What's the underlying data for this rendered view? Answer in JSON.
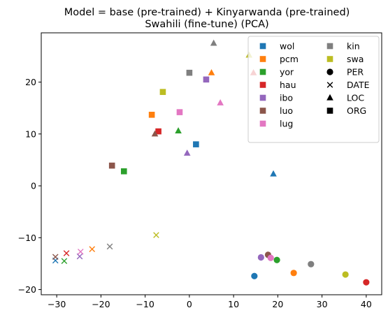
{
  "chart_data": {
    "type": "scatter",
    "title": [
      "Model = base (pre-trained) + Kinyarwanda (pre-trained)",
      "Swahili (fine-tune) (PCA)"
    ],
    "xlabel": "",
    "ylabel": "",
    "xlim": [
      -33.5,
      43.5
    ],
    "ylim": [
      -21,
      29.5
    ],
    "xticks": [
      -30,
      -20,
      -10,
      0,
      10,
      20,
      30,
      40
    ],
    "yticks": [
      -20,
      -10,
      0,
      10,
      20
    ],
    "grid": false,
    "legend_placement": "top-right",
    "languages": [
      {
        "name": "wol",
        "color": "#1f77b4"
      },
      {
        "name": "pcm",
        "color": "#ff7f0e"
      },
      {
        "name": "yor",
        "color": "#2ca02c"
      },
      {
        "name": "hau",
        "color": "#d62728"
      },
      {
        "name": "ibo",
        "color": "#9467bd"
      },
      {
        "name": "luo",
        "color": "#8c564b"
      },
      {
        "name": "lug",
        "color": "#e377c2"
      },
      {
        "name": "kin",
        "color": "#7f7f7f"
      },
      {
        "name": "swa",
        "color": "#bcbd22"
      }
    ],
    "entity_types": [
      {
        "name": "PER",
        "marker": "circle"
      },
      {
        "name": "DATE",
        "marker": "x"
      },
      {
        "name": "LOC",
        "marker": "triangle"
      },
      {
        "name": "ORG",
        "marker": "square"
      }
    ],
    "points": [
      {
        "lang": "wol",
        "entity": "ORG",
        "x": 1.5,
        "y": 8.0
      },
      {
        "lang": "pcm",
        "entity": "ORG",
        "x": -8.5,
        "y": 13.7
      },
      {
        "lang": "yor",
        "entity": "ORG",
        "x": -14.8,
        "y": 2.8
      },
      {
        "lang": "hau",
        "entity": "ORG",
        "x": -7.0,
        "y": 10.5
      },
      {
        "lang": "ibo",
        "entity": "ORG",
        "x": 3.8,
        "y": 20.5
      },
      {
        "lang": "luo",
        "entity": "ORG",
        "x": -17.5,
        "y": 3.9
      },
      {
        "lang": "lug",
        "entity": "ORG",
        "x": -2.2,
        "y": 14.2
      },
      {
        "lang": "kin",
        "entity": "ORG",
        "x": 0.0,
        "y": 21.8
      },
      {
        "lang": "swa",
        "entity": "ORG",
        "x": -6.0,
        "y": 18.1
      },
      {
        "lang": "wol",
        "entity": "LOC",
        "x": 19.0,
        "y": 2.3
      },
      {
        "lang": "pcm",
        "entity": "LOC",
        "x": 5.0,
        "y": 21.8
      },
      {
        "lang": "yor",
        "entity": "LOC",
        "x": -2.5,
        "y": 10.6
      },
      {
        "lang": "hau",
        "entity": "LOC",
        "x": 14.5,
        "y": 21.8
      },
      {
        "lang": "ibo",
        "entity": "LOC",
        "x": -0.5,
        "y": 6.3
      },
      {
        "lang": "luo",
        "entity": "LOC",
        "x": -7.8,
        "y": 10.0
      },
      {
        "lang": "lug",
        "entity": "LOC",
        "x": 7.0,
        "y": 16.0
      },
      {
        "lang": "kin",
        "entity": "LOC",
        "x": 5.5,
        "y": 27.5
      },
      {
        "lang": "swa",
        "entity": "LOC",
        "x": 13.5,
        "y": 25.2
      },
      {
        "lang": "wol",
        "entity": "DATE",
        "x": -30.3,
        "y": -14.4
      },
      {
        "lang": "pcm",
        "entity": "DATE",
        "x": -22.0,
        "y": -12.2
      },
      {
        "lang": "yor",
        "entity": "DATE",
        "x": -28.3,
        "y": -14.5
      },
      {
        "lang": "hau",
        "entity": "DATE",
        "x": -27.8,
        "y": -13.0
      },
      {
        "lang": "ibo",
        "entity": "DATE",
        "x": -24.8,
        "y": -13.6
      },
      {
        "lang": "luo",
        "entity": "DATE",
        "x": -30.3,
        "y": -13.7
      },
      {
        "lang": "lug",
        "entity": "DATE",
        "x": -24.6,
        "y": -12.7
      },
      {
        "lang": "kin",
        "entity": "DATE",
        "x": -18.0,
        "y": -11.7
      },
      {
        "lang": "swa",
        "entity": "DATE",
        "x": -7.5,
        "y": -9.5
      },
      {
        "lang": "wol",
        "entity": "PER",
        "x": 14.7,
        "y": -17.4
      },
      {
        "lang": "pcm",
        "entity": "PER",
        "x": 23.6,
        "y": -16.8
      },
      {
        "lang": "yor",
        "entity": "PER",
        "x": 19.8,
        "y": -14.3
      },
      {
        "lang": "hau",
        "entity": "PER",
        "x": 40.0,
        "y": -18.6
      },
      {
        "lang": "ibo",
        "entity": "PER",
        "x": 16.2,
        "y": -13.8
      },
      {
        "lang": "luo",
        "entity": "PER",
        "x": 17.8,
        "y": -13.3
      },
      {
        "lang": "lug",
        "entity": "PER",
        "x": 18.4,
        "y": -13.9
      },
      {
        "lang": "kin",
        "entity": "PER",
        "x": 27.5,
        "y": -15.1
      },
      {
        "lang": "swa",
        "entity": "PER",
        "x": 35.3,
        "y": -17.1
      }
    ]
  }
}
